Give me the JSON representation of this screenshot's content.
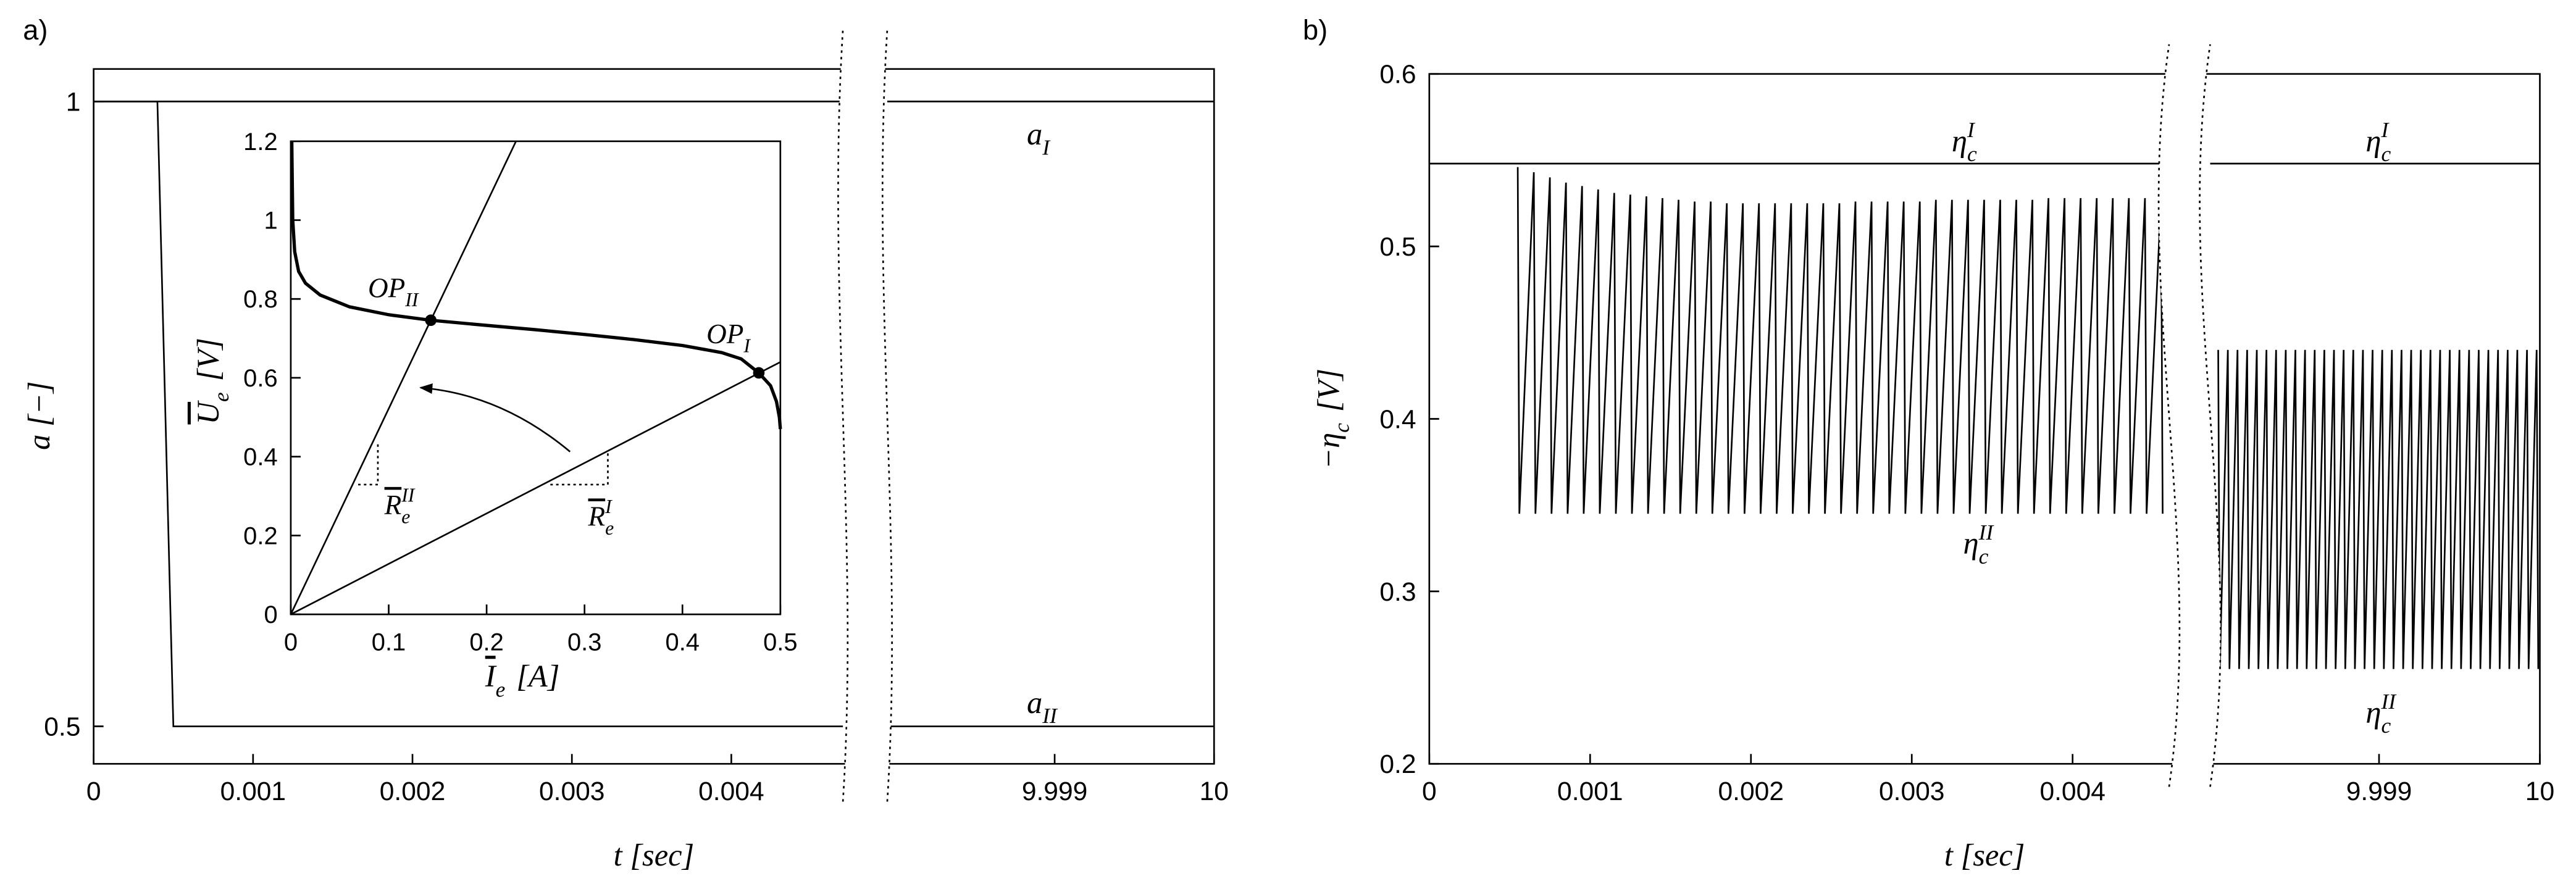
{
  "chart_data": [
    {
      "type": "line",
      "panel_label": "a)",
      "xlabel": "t [sec]",
      "ylabel": "a [−]",
      "xlim": [
        [
          0,
          0.0047
        ],
        [
          9.99795,
          10
        ]
      ],
      "ylim": [
        0.47,
        1.026
      ],
      "xticks": [
        0,
        0.001,
        0.002,
        0.003,
        0.004,
        9.999,
        10
      ],
      "yticks": [
        0.5,
        1
      ],
      "series": [
        {
          "color": "#000000",
          "x": [
            0,
            0.0047,
            null,
            9.99795,
            10
          ],
          "values": [
            1,
            1,
            null,
            1,
            1
          ]
        },
        {
          "color": "#000000",
          "x": [
            0,
            0.0004,
            0.0005,
            0.0047,
            null,
            9.99795,
            10
          ],
          "values": [
            1,
            1,
            0.5,
            0.5,
            null,
            0.5,
            0.5
          ]
        }
      ],
      "annotations": [
        {
          "text": "a",
          "sub": "I"
        },
        {
          "text": "a",
          "sub": "II"
        }
      ]
    },
    {
      "type": "line",
      "xlabel": {
        "text": "I",
        "sub": "e",
        "after": " [A]"
      },
      "ylabel": {
        "text": "U",
        "sub": "e",
        "after": " [V]"
      },
      "xlim": [
        0,
        0.5
      ],
      "ylim": [
        0,
        1.2
      ],
      "xticks": [
        0,
        0.1,
        0.2,
        0.3,
        0.4,
        0.5
      ],
      "yticks": [
        0,
        0.2,
        0.4,
        0.6,
        0.8,
        1,
        1.2
      ],
      "series": [
        {
          "color": "#000000",
          "x": [
            0.001,
            0.002,
            0.004,
            0.008,
            0.015,
            0.03,
            0.06,
            0.1,
            0.143,
            0.2,
            0.25,
            0.3,
            0.35,
            0.4,
            0.44,
            0.46,
            0.478,
            0.49,
            0.496,
            0.499,
            0.5
          ],
          "values": [
            1.2,
            1.0,
            0.92,
            0.87,
            0.84,
            0.81,
            0.78,
            0.76,
            0.746,
            0.733,
            0.722,
            0.71,
            0.697,
            0.682,
            0.664,
            0.648,
            0.6125,
            0.58,
            0.54,
            0.5,
            0.47
          ]
        },
        {
          "color": "#000000",
          "x": [
            0,
            0.23
          ],
          "values": [
            0,
            1.2
          ]
        },
        {
          "color": "#000000",
          "x": [
            0,
            0.5
          ],
          "values": [
            0,
            0.64
          ]
        },
        {
          "color": "#000000",
          "style": "points",
          "x": [
            0.143,
            0.478
          ],
          "values": [
            0.746,
            0.6125
          ]
        }
      ],
      "annotations": [
        {
          "text": "OP",
          "sub": "II"
        },
        {
          "text": "OP",
          "sub": "I"
        },
        {
          "text": "R",
          "sub": "e",
          "sup": "II"
        },
        {
          "text": "R",
          "sub": "e",
          "sup": "I"
        }
      ]
    },
    {
      "type": "line",
      "panel_label": "b)",
      "xlabel": "t [sec]",
      "ylabel": {
        "text": "−η",
        "sub": "c",
        "after": " [V]"
      },
      "xlim": [
        [
          0,
          0.0046
        ],
        [
          9.99795,
          10
        ]
      ],
      "ylim": [
        0.2,
        0.6
      ],
      "xticks": [
        0,
        0.001,
        0.002,
        0.003,
        0.004,
        9.999,
        10
      ],
      "yticks": [
        0.2,
        0.3,
        0.4,
        0.5,
        0.6
      ],
      "series": [
        {
          "color": "#000000",
          "x": [
            0,
            0.0046,
            null,
            9.99795,
            10
          ],
          "values": [
            0.548,
            0.548,
            null,
            0.548,
            0.548
          ]
        },
        {
          "color": "#000000",
          "x": [
            0.00055,
            0.00056,
            0.00065,
            0.00066,
            0.00075,
            0.00076,
            0.00085,
            0.00086,
            0.00095,
            0.00096,
            0.00105,
            0.00106,
            0.00115,
            0.00116,
            0.00125,
            0.00126,
            0.00135,
            0.00136,
            0.00145,
            0.00146,
            0.00155,
            0.00156,
            0.00165,
            0.00166,
            0.00175,
            0.00176,
            0.00185,
            0.00186,
            0.00195,
            0.00196,
            0.00205,
            0.00206,
            0.00215,
            0.00216,
            0.00225,
            0.00226,
            0.00235,
            0.00236,
            0.00245,
            0.00246,
            0.00255,
            0.00256,
            0.00265,
            0.00266,
            0.00275,
            0.00276,
            0.00285,
            0.00286,
            0.00295,
            0.00296,
            0.00305,
            0.00306,
            0.00315,
            0.00316,
            0.00325,
            0.00326,
            0.00335,
            0.00336,
            0.00345,
            0.00346,
            0.00355,
            0.00356,
            0.00365,
            0.00366,
            0.00375,
            0.00376,
            0.00385,
            0.00386,
            0.00395,
            0.00396,
            0.00405,
            0.00406,
            0.00415,
            0.00416,
            0.00425,
            0.00426,
            0.00435,
            0.00436,
            0.00445,
            0.00446,
            0.00455,
            0.00456,
            null,
            9.998,
            9.99801,
            9.99806,
            9.99807,
            9.99812,
            9.99813,
            9.99818,
            9.99819,
            9.99824,
            9.99825,
            9.9983,
            9.99831,
            9.99836,
            9.99837,
            9.99842,
            9.99843,
            9.99848,
            9.99849,
            9.99854,
            9.99855,
            9.9986,
            9.99861,
            9.99866,
            9.99867,
            9.99872,
            9.99873,
            9.99878,
            9.99879,
            9.99884,
            9.99885,
            9.9989,
            9.99891,
            9.99896,
            9.99897,
            9.99902,
            9.99903,
            9.99908,
            9.99909,
            9.99914,
            9.99915,
            9.9992,
            9.99921,
            9.99926,
            9.99927,
            9.99932,
            9.99933,
            9.99938,
            9.99939,
            9.99944,
            9.99945,
            9.9995,
            9.99951,
            9.99956,
            9.99957,
            9.99962,
            9.99963,
            9.99968,
            9.99969,
            9.99974,
            9.99975,
            9.9998,
            9.99981,
            9.99986,
            9.99987,
            9.99992,
            9.99993,
            9.99998,
            9.99999
          ],
          "values": [
            0.546,
            0.345,
            0.543,
            0.345,
            0.54,
            0.345,
            0.537,
            0.345,
            0.535,
            0.345,
            0.533,
            0.345,
            0.531,
            0.345,
            0.53,
            0.345,
            0.529,
            0.345,
            0.528,
            0.345,
            0.527,
            0.345,
            0.526,
            0.345,
            0.526,
            0.345,
            0.525,
            0.345,
            0.525,
            0.345,
            0.525,
            0.345,
            0.525,
            0.345,
            0.525,
            0.345,
            0.525,
            0.345,
            0.525,
            0.345,
            0.525,
            0.345,
            0.526,
            0.345,
            0.526,
            0.345,
            0.526,
            0.345,
            0.526,
            0.345,
            0.526,
            0.345,
            0.527,
            0.345,
            0.527,
            0.345,
            0.527,
            0.345,
            0.527,
            0.345,
            0.527,
            0.345,
            0.527,
            0.345,
            0.527,
            0.345,
            0.528,
            0.345,
            0.528,
            0.345,
            0.528,
            0.345,
            0.528,
            0.345,
            0.528,
            0.345,
            0.528,
            0.345,
            0.528,
            0.345,
            0.528,
            0.345,
            null,
            0.44,
            0.255,
            0.44,
            0.255,
            0.44,
            0.255,
            0.44,
            0.255,
            0.44,
            0.255,
            0.44,
            0.255,
            0.44,
            0.255,
            0.44,
            0.255,
            0.44,
            0.255,
            0.44,
            0.255,
            0.44,
            0.255,
            0.44,
            0.255,
            0.44,
            0.255,
            0.44,
            0.255,
            0.44,
            0.255,
            0.44,
            0.255,
            0.44,
            0.255,
            0.44,
            0.255,
            0.44,
            0.255,
            0.44,
            0.255,
            0.44,
            0.255,
            0.44,
            0.255,
            0.44,
            0.255,
            0.44,
            0.255,
            0.44,
            0.255,
            0.44,
            0.255,
            0.44,
            0.255,
            0.44,
            0.255,
            0.44,
            0.255,
            0.44,
            0.255,
            0.44,
            0.255,
            0.44,
            0.255,
            0.44,
            0.255,
            0.44,
            0.255
          ]
        }
      ],
      "annotations": [
        {
          "text": "η",
          "sub": "c",
          "sup": "I"
        },
        {
          "text": "η",
          "sub": "c",
          "sup": "I"
        },
        {
          "text": "η",
          "sub": "c",
          "sup": "II"
        },
        {
          "text": "η",
          "sub": "c",
          "sup": "II"
        }
      ]
    }
  ]
}
